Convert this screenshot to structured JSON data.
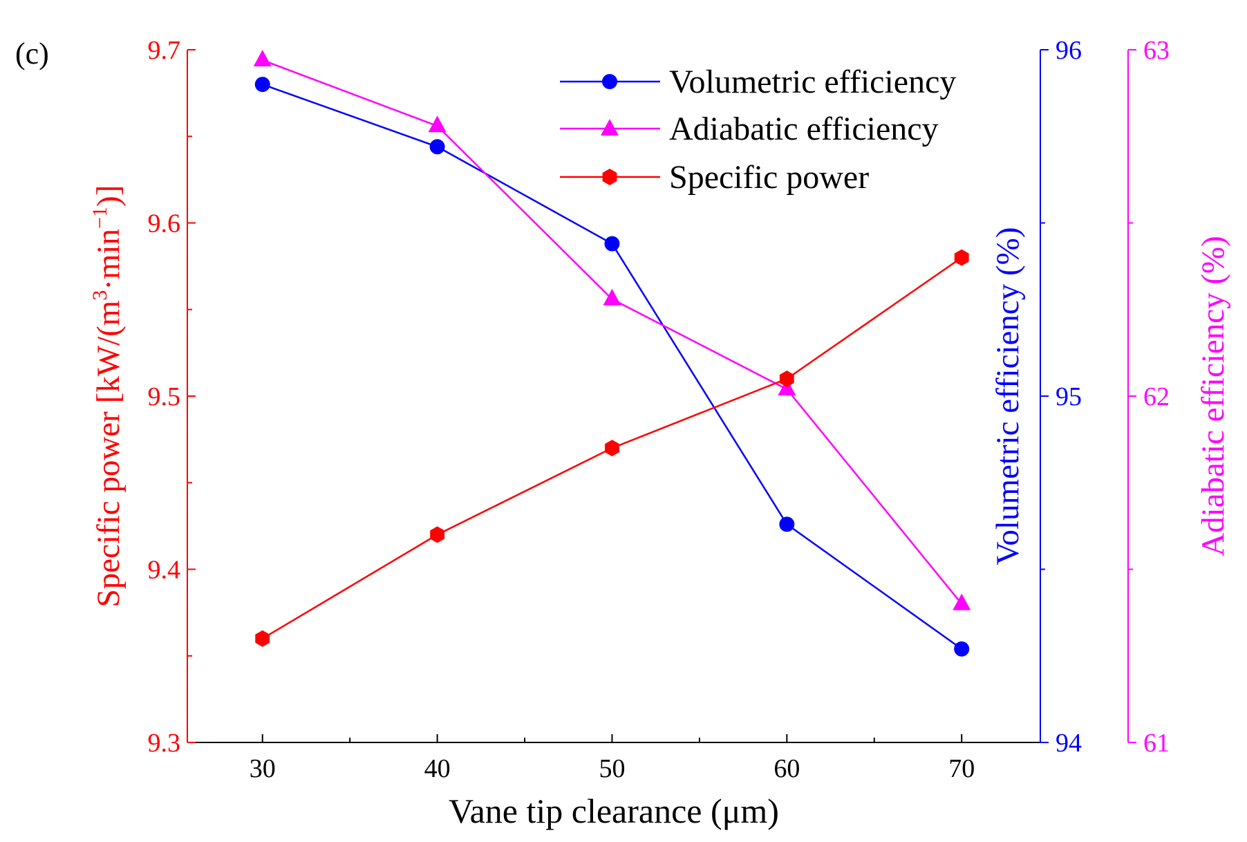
{
  "chart_data": {
    "type": "line",
    "panel_label": "(c)",
    "x": [
      30,
      40,
      50,
      60,
      70
    ],
    "xlabel": "Vane tip clearance (μm)",
    "xlim": [
      25.7,
      74.5
    ],
    "xticks": [
      "30",
      "40",
      "50",
      "60",
      "70"
    ],
    "axes": {
      "left": {
        "label_main": "Specific power [kW/(m",
        "label_sup1": "3",
        "label_mid": "·min",
        "label_sup2": "−1",
        "label_end": ")]",
        "ylim": [
          9.3,
          9.7
        ],
        "ticks": [
          "9.3",
          "9.4",
          "9.5",
          "9.6",
          "9.7"
        ],
        "color": "#ff0000"
      },
      "right1": {
        "label": "Volumetric efficiency (%)",
        "ylim": [
          94,
          96
        ],
        "ticks": [
          "94",
          "95",
          "96"
        ],
        "color": "#0000ff"
      },
      "right2": {
        "label": "Adiabatic efficiency (%)",
        "ylim": [
          61,
          63
        ],
        "ticks": [
          "61",
          "62",
          "63"
        ],
        "color": "#ff00ff"
      }
    },
    "series": [
      {
        "name": "Volumetric efficiency",
        "axis": "right1",
        "marker": "circle",
        "color": "#0000ff",
        "values": [
          95.9,
          95.72,
          95.44,
          94.63,
          94.27
        ]
      },
      {
        "name": "Adiabatic efficiency",
        "axis": "right2",
        "marker": "triangle",
        "color": "#ff00ff",
        "values": [
          62.97,
          62.78,
          62.28,
          62.02,
          61.4
        ]
      },
      {
        "name": "Specific power",
        "axis": "left",
        "marker": "hexagon",
        "color": "#ff0000",
        "values": [
          9.36,
          9.42,
          9.47,
          9.51,
          9.58
        ]
      }
    ],
    "legend_position": "top-right",
    "grid": false
  }
}
